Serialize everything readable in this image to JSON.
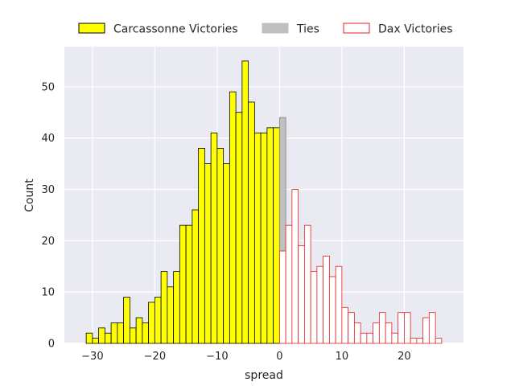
{
  "chart_data": {
    "type": "bar",
    "xlabel": "spread",
    "ylabel": "Count",
    "xlim": [
      -34.5,
      29.5
    ],
    "ylim": [
      0,
      57.8
    ],
    "xticks": [
      -30,
      -20,
      -10,
      0,
      10,
      20
    ],
    "yticks": [
      0,
      10,
      20,
      30,
      40,
      50
    ],
    "grid": true,
    "legend_position": "top-center",
    "series": [
      {
        "name": "Carcassonne Victories",
        "style": "filled",
        "fill": "#ffff00",
        "edge": "#000000",
        "bins": [
          {
            "x": -31,
            "count": 2
          },
          {
            "x": -30,
            "count": 1
          },
          {
            "x": -29,
            "count": 3
          },
          {
            "x": -28,
            "count": 2
          },
          {
            "x": -27,
            "count": 4
          },
          {
            "x": -26,
            "count": 4
          },
          {
            "x": -25,
            "count": 9
          },
          {
            "x": -24,
            "count": 3
          },
          {
            "x": -23,
            "count": 5
          },
          {
            "x": -22,
            "count": 4
          },
          {
            "x": -21,
            "count": 8
          },
          {
            "x": -20,
            "count": 9
          },
          {
            "x": -19,
            "count": 14
          },
          {
            "x": -18,
            "count": 11
          },
          {
            "x": -17,
            "count": 14
          },
          {
            "x": -16,
            "count": 23
          },
          {
            "x": -15,
            "count": 23
          },
          {
            "x": -14,
            "count": 26
          },
          {
            "x": -13,
            "count": 38
          },
          {
            "x": -12,
            "count": 35
          },
          {
            "x": -11,
            "count": 41
          },
          {
            "x": -10,
            "count": 38
          },
          {
            "x": -9,
            "count": 35
          },
          {
            "x": -8,
            "count": 49
          },
          {
            "x": -7,
            "count": 45
          },
          {
            "x": -6,
            "count": 55
          },
          {
            "x": -5,
            "count": 47
          },
          {
            "x": -4,
            "count": 41
          },
          {
            "x": -3,
            "count": 41
          },
          {
            "x": -2,
            "count": 42
          },
          {
            "x": -1,
            "count": 42
          }
        ]
      },
      {
        "name": "Ties",
        "style": "filled",
        "fill": "#c0c0c0",
        "edge": "#808080",
        "bins": [
          {
            "x": 0,
            "count": 44
          }
        ]
      },
      {
        "name": "Dax Victories",
        "style": "outline",
        "fill": "#ffffff",
        "edge": "#e02020",
        "bins": [
          {
            "x": 0,
            "count": 18
          },
          {
            "x": 1,
            "count": 23
          },
          {
            "x": 2,
            "count": 30
          },
          {
            "x": 3,
            "count": 19
          },
          {
            "x": 4,
            "count": 23
          },
          {
            "x": 5,
            "count": 14
          },
          {
            "x": 6,
            "count": 15
          },
          {
            "x": 7,
            "count": 17
          },
          {
            "x": 8,
            "count": 13
          },
          {
            "x": 9,
            "count": 15
          },
          {
            "x": 10,
            "count": 7
          },
          {
            "x": 11,
            "count": 6
          },
          {
            "x": 12,
            "count": 4
          },
          {
            "x": 13,
            "count": 2
          },
          {
            "x": 14,
            "count": 2
          },
          {
            "x": 15,
            "count": 4
          },
          {
            "x": 16,
            "count": 6
          },
          {
            "x": 17,
            "count": 4
          },
          {
            "x": 18,
            "count": 2
          },
          {
            "x": 19,
            "count": 6
          },
          {
            "x": 20,
            "count": 6
          },
          {
            "x": 21,
            "count": 1
          },
          {
            "x": 22,
            "count": 1
          },
          {
            "x": 23,
            "count": 5
          },
          {
            "x": 24,
            "count": 6
          },
          {
            "x": 25,
            "count": 1
          }
        ]
      }
    ]
  },
  "colors": {
    "plot_background": "#eaeaf2",
    "grid": "#ffffff",
    "text": "#262626"
  }
}
